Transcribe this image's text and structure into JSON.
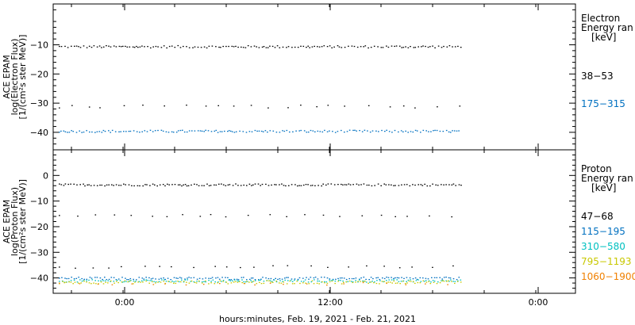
{
  "chart_data": [
    {
      "type": "scatter",
      "panel": "electron",
      "ylabel_lines": [
        "ACE EPAM",
        "log(Electron Flux)",
        "[1/(cm²s ster MeV)]"
      ],
      "ylim": [
        -46,
        4
      ],
      "yticks": [
        -10,
        -20,
        -30,
        -40
      ],
      "legend_title_lines": [
        "Electron",
        "Energy ran",
        "[keV]"
      ],
      "series": [
        {
          "name": "38-53",
          "color": "#000000",
          "segments": [
            {
              "y": -10.5,
              "jitter": 0.4
            },
            {
              "y": -31.0,
              "jitter": 0.5,
              "sparse": true
            }
          ]
        },
        {
          "name": "175-315",
          "color": "#0070c0",
          "segments": [
            {
              "y": -39.5,
              "jitter": 0.4
            }
          ]
        }
      ]
    },
    {
      "type": "scatter",
      "panel": "proton",
      "ylabel_lines": [
        "ACE EPAM",
        "log(Proton Flux)",
        "[1/(cm²s ster MeV)]"
      ],
      "ylim": [
        -46,
        10
      ],
      "yticks": [
        0,
        -10,
        -20,
        -30,
        -40
      ],
      "legend_title_lines": [
        "Proton",
        "Energy ran",
        "[keV]"
      ],
      "series": [
        {
          "name": "47-68",
          "color": "#000000",
          "segments": [
            {
              "y": -3.5,
              "jitter": 0.4
            },
            {
              "y": -15.5,
              "jitter": 0.5,
              "sparse": true
            },
            {
              "y": -35.5,
              "jitter": 0.5,
              "sparse": true
            }
          ]
        },
        {
          "name": "115-195",
          "color": "#0070c0",
          "segments": [
            {
              "y": -40.0,
              "jitter": 0.5
            }
          ]
        },
        {
          "name": "310-580",
          "color": "#00c0c0",
          "segments": [
            {
              "y": -41.0,
              "jitter": 0.5
            }
          ]
        },
        {
          "name": "795-1193",
          "color": "#c8c800",
          "segments": [
            {
              "y": -41.5,
              "jitter": 0.6
            }
          ]
        },
        {
          "name": "1060-1900",
          "color": "#f08000",
          "segments": [
            {
              "y": -42.0,
              "jitter": 0.6,
              "sparse": true
            }
          ]
        }
      ]
    }
  ],
  "x_axis": {
    "xlabel": "hours:minutes, Feb. 19, 2021 - Feb. 21, 2021",
    "tick_labels": [
      "0:00",
      "12:00",
      "0:00"
    ],
    "data_end_fraction": 0.78
  }
}
